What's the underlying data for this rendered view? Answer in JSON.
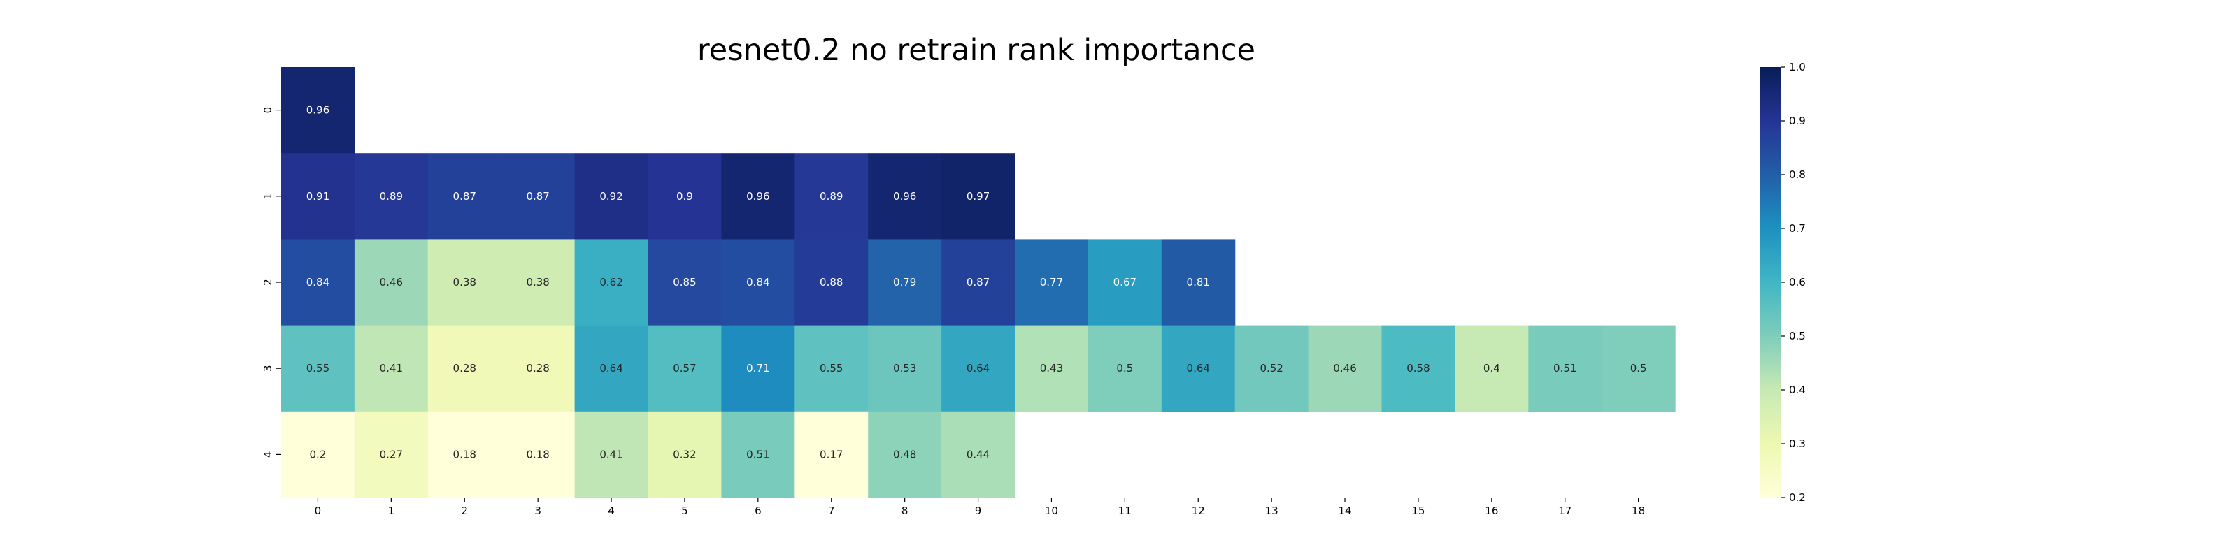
{
  "chart_data": {
    "type": "heatmap",
    "title": "resnet0.2 no retrain rank importance",
    "xlabel": "",
    "ylabel": "",
    "x_ticks": [
      "0",
      "1",
      "2",
      "3",
      "4",
      "5",
      "6",
      "7",
      "8",
      "9",
      "10",
      "11",
      "12",
      "13",
      "14",
      "15",
      "16",
      "17",
      "18"
    ],
    "y_ticks": [
      "0",
      "1",
      "2",
      "3",
      "4"
    ],
    "rows": [
      [
        0.96
      ],
      [
        0.91,
        0.89,
        0.87,
        0.87,
        0.92,
        0.9,
        0.96,
        0.89,
        0.96,
        0.97
      ],
      [
        0.84,
        0.46,
        0.38,
        0.38,
        0.62,
        0.85,
        0.84,
        0.88,
        0.79,
        0.87,
        0.77,
        0.67,
        0.81
      ],
      [
        0.55,
        0.41,
        0.28,
        0.28,
        0.64,
        0.57,
        0.71,
        0.55,
        0.53,
        0.64,
        0.43,
        0.5,
        0.64,
        0.52,
        0.46,
        0.58,
        0.4,
        0.51,
        0.5
      ],
      [
        0.2,
        0.27,
        0.18,
        0.18,
        0.41,
        0.32,
        0.51,
        0.17,
        0.48,
        0.44
      ]
    ],
    "colorbar": {
      "min": 0.2,
      "max": 1.0,
      "ticks": [
        "0.2",
        "0.3",
        "0.4",
        "0.5",
        "0.6",
        "0.7",
        "0.8",
        "0.9",
        "1.0"
      ],
      "colormap": "YlGnBu"
    }
  }
}
